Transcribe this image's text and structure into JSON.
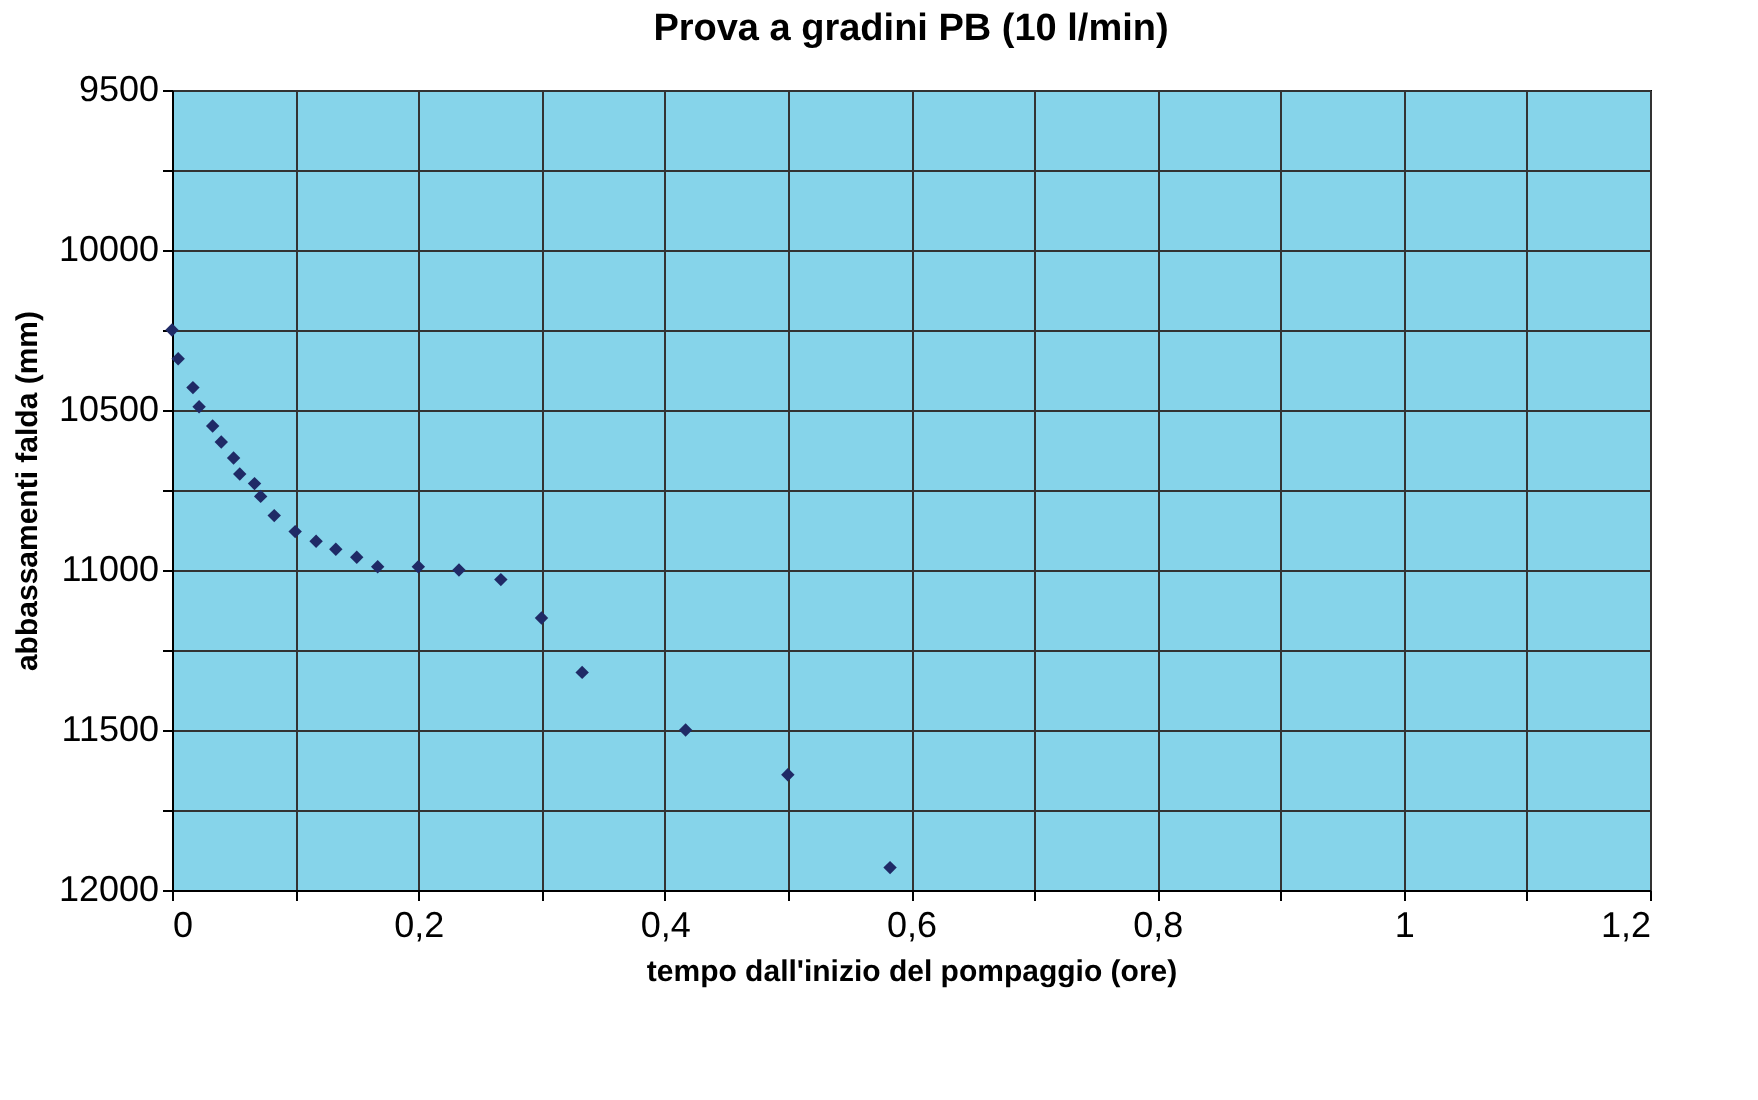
{
  "chart_data": {
    "type": "scatter",
    "title": "Prova a gradini PB (10 l/min)",
    "xlabel": "tempo dall'inizio del pompaggio (ore)",
    "ylabel": "abbassamenti falda (mm)",
    "x": [
      0.0,
      0.005,
      0.017,
      0.022,
      0.033,
      0.04,
      0.05,
      0.055,
      0.067,
      0.072,
      0.083,
      0.1,
      0.117,
      0.133,
      0.15,
      0.167,
      0.2,
      0.233,
      0.267,
      0.3,
      0.333,
      0.417,
      0.5,
      0.583
    ],
    "series": [
      {
        "color": "#1f2a66",
        "values": [
          10250,
          10340,
          10430,
          10490,
          10550,
          10600,
          10650,
          10700,
          10730,
          10770,
          10830,
          10880,
          10910,
          10935,
          10960,
          10990,
          10990,
          11000,
          11030,
          11150,
          11320,
          11500,
          11640,
          11930
        ]
      }
    ],
    "xlim": [
      0,
      1.2
    ],
    "ylim": [
      12000,
      9500
    ],
    "xticks": [
      0,
      {
        "value": 0.1,
        "label": null
      },
      {
        "value": 0.2,
        "label": "0,2"
      },
      {
        "value": 0.3,
        "label": null
      },
      {
        "value": 0.4,
        "label": "0,4"
      },
      {
        "value": 0.5,
        "label": null
      },
      {
        "value": 0.6,
        "label": "0,6"
      },
      {
        "value": 0.7,
        "label": null
      },
      {
        "value": 0.8,
        "label": "0,8"
      },
      {
        "value": 0.9,
        "label": null
      },
      1,
      {
        "value": 1.1,
        "label": null
      },
      {
        "value": 1.2,
        "label": "1,2"
      }
    ],
    "yticks": [
      9500,
      {
        "value": 9750,
        "label": null
      },
      10000,
      {
        "value": 10250,
        "label": null
      },
      10500,
      {
        "value": 10750,
        "label": null
      },
      11000,
      {
        "value": 11250,
        "label": null
      },
      11500,
      {
        "value": 11750,
        "label": null
      },
      12000
    ],
    "grid": true,
    "marker": "diamond"
  }
}
